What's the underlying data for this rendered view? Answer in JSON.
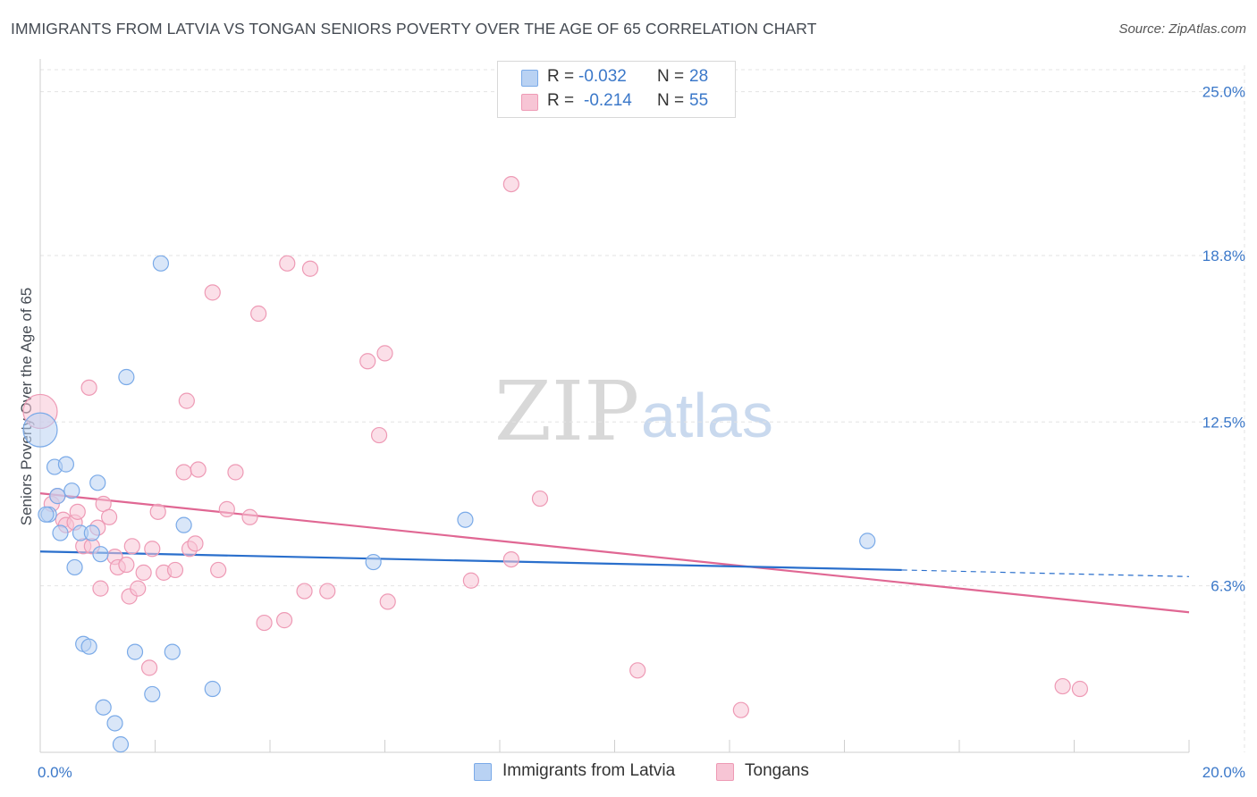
{
  "chart_data": {
    "type": "scatter",
    "title": "IMMIGRANTS FROM LATVIA VS TONGAN SENIORS POVERTY OVER THE AGE OF 65 CORRELATION CHART",
    "source": "Source: ZipAtlas.com",
    "ylabel": "Seniors Poverty Over the Age of 65",
    "xlabel": "",
    "xlim": [
      0,
      20
    ],
    "ylim": [
      0,
      26
    ],
    "x_tick_labels": {
      "min": "0.0%",
      "max": "20.0%"
    },
    "y_ticks": [
      {
        "value": 6.3,
        "label": "6.3%"
      },
      {
        "value": 12.5,
        "label": "12.5%"
      },
      {
        "value": 18.8,
        "label": "18.8%"
      },
      {
        "value": 25.0,
        "label": "25.0%"
      }
    ],
    "grid": true,
    "watermark": {
      "zip": "ZIP",
      "atlas": "atlas"
    },
    "legend_stats": [
      {
        "r_label": "R =",
        "r_value": "-0.032",
        "n_label": "N =",
        "n_value": "28"
      },
      {
        "r_label": "R =",
        "r_value": "-0.214",
        "n_label": "N =",
        "n_value": "55"
      }
    ],
    "series": [
      {
        "name": "Immigrants from Latvia",
        "color": "#7aaae8",
        "fill": "#b9d2f3",
        "line_color": "#2a6fcc",
        "trend": {
          "x0": 0.0,
          "y0": 7.6,
          "x1": 15.0,
          "y1": 6.9,
          "dash_to_x": 20.0,
          "dash_to_y": 6.65
        },
        "points": [
          {
            "x": 0.0,
            "y": 12.2,
            "big": true
          },
          {
            "x": 0.15,
            "y": 9.0
          },
          {
            "x": 0.25,
            "y": 10.8
          },
          {
            "x": 0.3,
            "y": 9.7
          },
          {
            "x": 0.35,
            "y": 8.3
          },
          {
            "x": 0.45,
            "y": 10.9
          },
          {
            "x": 0.55,
            "y": 9.9
          },
          {
            "x": 0.6,
            "y": 7.0
          },
          {
            "x": 0.7,
            "y": 8.3
          },
          {
            "x": 0.75,
            "y": 4.1
          },
          {
            "x": 0.85,
            "y": 4.0
          },
          {
            "x": 0.9,
            "y": 8.3
          },
          {
            "x": 1.0,
            "y": 10.2
          },
          {
            "x": 1.05,
            "y": 7.5
          },
          {
            "x": 1.1,
            "y": 1.7
          },
          {
            "x": 1.3,
            "y": 1.1
          },
          {
            "x": 1.4,
            "y": 0.3
          },
          {
            "x": 1.5,
            "y": 14.2
          },
          {
            "x": 1.65,
            "y": 3.8
          },
          {
            "x": 1.95,
            "y": 2.2
          },
          {
            "x": 2.1,
            "y": 18.5
          },
          {
            "x": 2.3,
            "y": 3.8
          },
          {
            "x": 2.5,
            "y": 8.6
          },
          {
            "x": 3.0,
            "y": 2.4
          },
          {
            "x": 5.8,
            "y": 7.2
          },
          {
            "x": 7.4,
            "y": 8.8
          },
          {
            "x": 14.4,
            "y": 8.0
          },
          {
            "x": 0.1,
            "y": 9.0
          }
        ]
      },
      {
        "name": "Tongans",
        "color": "#ee9ab5",
        "fill": "#f7c5d5",
        "line_color": "#e06793",
        "trend": {
          "x0": 0.0,
          "y0": 9.8,
          "x1": 20.0,
          "y1": 5.3
        },
        "points": [
          {
            "x": 0.0,
            "y": 12.9,
            "big": true
          },
          {
            "x": 0.2,
            "y": 9.4
          },
          {
            "x": 0.3,
            "y": 9.7
          },
          {
            "x": 0.4,
            "y": 8.8
          },
          {
            "x": 0.45,
            "y": 8.6
          },
          {
            "x": 0.6,
            "y": 8.7
          },
          {
            "x": 0.65,
            "y": 9.1
          },
          {
            "x": 0.75,
            "y": 7.8
          },
          {
            "x": 0.85,
            "y": 13.8
          },
          {
            "x": 0.9,
            "y": 7.8
          },
          {
            "x": 1.0,
            "y": 8.5
          },
          {
            "x": 1.05,
            "y": 6.2
          },
          {
            "x": 1.1,
            "y": 9.4
          },
          {
            "x": 1.2,
            "y": 8.9
          },
          {
            "x": 1.3,
            "y": 7.4
          },
          {
            "x": 1.35,
            "y": 7.0
          },
          {
            "x": 1.5,
            "y": 7.1
          },
          {
            "x": 1.55,
            "y": 5.9
          },
          {
            "x": 1.6,
            "y": 7.8
          },
          {
            "x": 1.7,
            "y": 6.2
          },
          {
            "x": 1.8,
            "y": 6.8
          },
          {
            "x": 1.9,
            "y": 3.2
          },
          {
            "x": 1.95,
            "y": 7.7
          },
          {
            "x": 2.05,
            "y": 9.1
          },
          {
            "x": 2.15,
            "y": 6.8
          },
          {
            "x": 2.35,
            "y": 6.9
          },
          {
            "x": 2.5,
            "y": 10.6
          },
          {
            "x": 2.55,
            "y": 13.3
          },
          {
            "x": 2.6,
            "y": 7.7
          },
          {
            "x": 2.7,
            "y": 7.9
          },
          {
            "x": 2.75,
            "y": 10.7
          },
          {
            "x": 3.0,
            "y": 17.4
          },
          {
            "x": 3.1,
            "y": 6.9
          },
          {
            "x": 3.25,
            "y": 9.2
          },
          {
            "x": 3.4,
            "y": 10.6
          },
          {
            "x": 3.65,
            "y": 8.9
          },
          {
            "x": 3.8,
            "y": 16.6
          },
          {
            "x": 3.9,
            "y": 4.9
          },
          {
            "x": 4.25,
            "y": 5.0
          },
          {
            "x": 4.3,
            "y": 18.5
          },
          {
            "x": 4.6,
            "y": 6.1
          },
          {
            "x": 4.7,
            "y": 18.3
          },
          {
            "x": 5.0,
            "y": 6.1
          },
          {
            "x": 5.7,
            "y": 14.8
          },
          {
            "x": 5.9,
            "y": 12.0
          },
          {
            "x": 6.0,
            "y": 15.1
          },
          {
            "x": 6.05,
            "y": 5.7
          },
          {
            "x": 7.5,
            "y": 6.5
          },
          {
            "x": 8.2,
            "y": 21.5
          },
          {
            "x": 8.2,
            "y": 7.3
          },
          {
            "x": 8.7,
            "y": 9.6
          },
          {
            "x": 10.4,
            "y": 3.1
          },
          {
            "x": 12.2,
            "y": 1.6
          },
          {
            "x": 17.8,
            "y": 2.5
          },
          {
            "x": 18.1,
            "y": 2.4
          }
        ]
      }
    ]
  }
}
